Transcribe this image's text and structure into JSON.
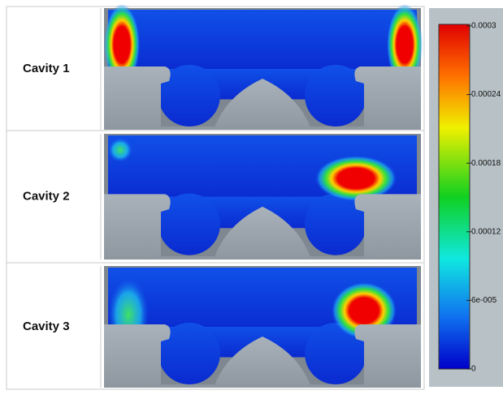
{
  "rows": [
    {
      "label": "Cavity 1"
    },
    {
      "label": "Cavity 2"
    },
    {
      "label": "Cavity 3"
    }
  ],
  "colorbar": {
    "ticks": [
      0.0003,
      0.00024,
      0.00018,
      0.00012,
      {
        "value": 6e-05,
        "label": "6e-005"
      },
      0
    ]
  }
}
